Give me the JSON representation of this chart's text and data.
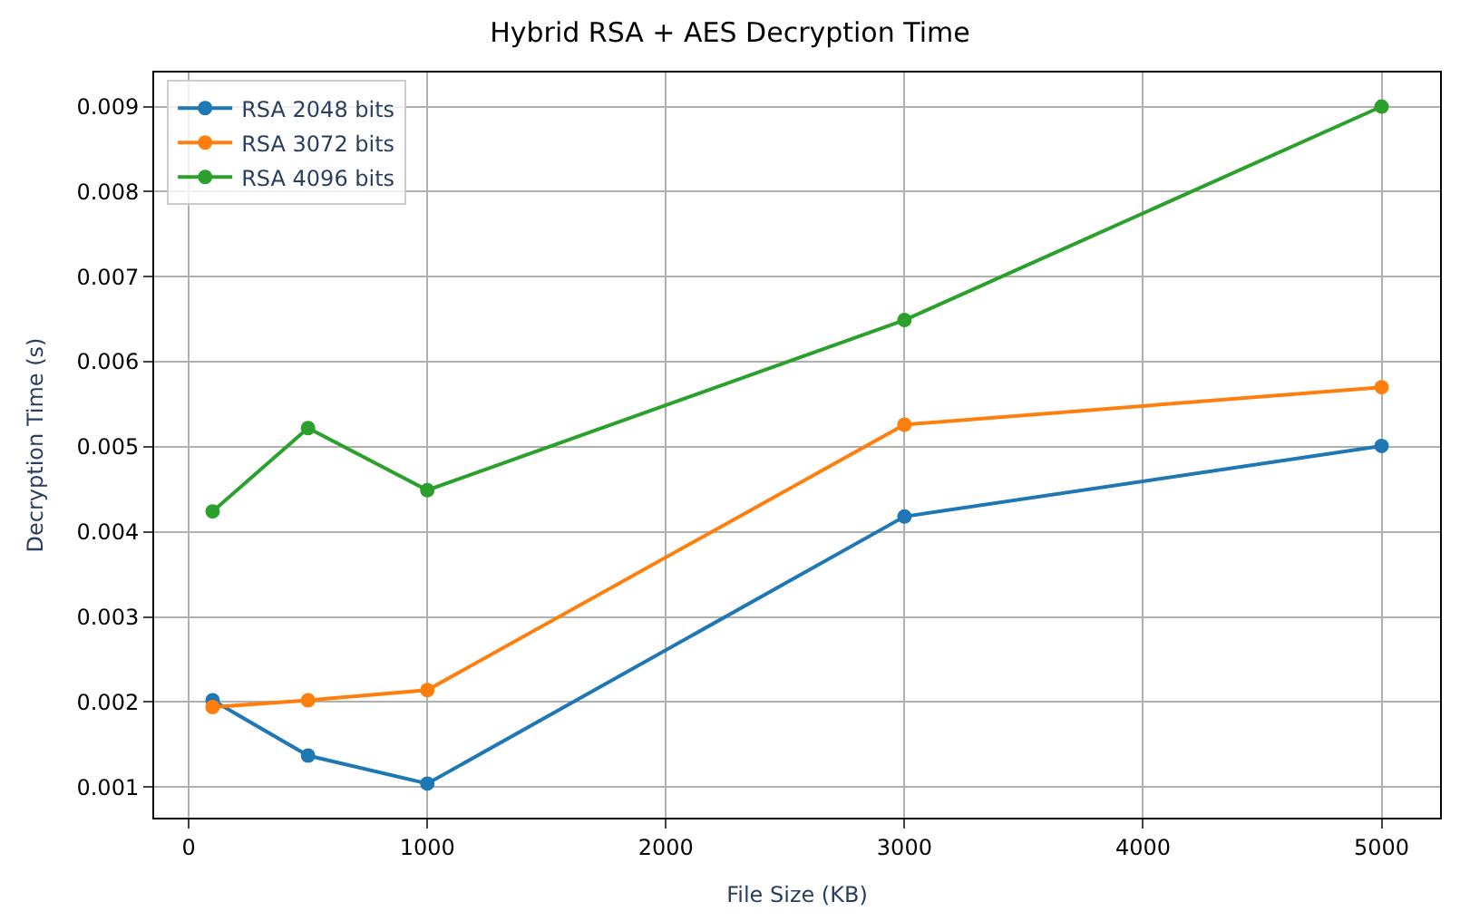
{
  "chart_data": {
    "type": "line",
    "title": "Hybrid RSA + AES Decryption Time",
    "xlabel": "File Size (KB)",
    "ylabel": "Decryption Time (s)",
    "x": [
      100,
      500,
      1000,
      3000,
      5000
    ],
    "series": [
      {
        "name": "RSA 2048 bits",
        "color": "#1f77b4",
        "values": [
          0.00202,
          0.00137,
          0.00104,
          0.00418,
          0.00501
        ]
      },
      {
        "name": "RSA 3072 bits",
        "color": "#ff7f0e",
        "values": [
          0.00194,
          0.00202,
          0.00214,
          0.00526,
          0.0057
        ]
      },
      {
        "name": "RSA 4096 bits",
        "color": "#2ca02c",
        "values": [
          0.00424,
          0.00522,
          0.00449,
          0.00649,
          0.009
        ]
      }
    ],
    "xlim": [
      -145,
      5245
    ],
    "xticks": [
      0,
      1000,
      2000,
      3000,
      4000,
      5000
    ],
    "ylim": [
      0.00064,
      0.0094
    ],
    "yticks": [
      0.001,
      0.002,
      0.003,
      0.004,
      0.005,
      0.006,
      0.007,
      0.008,
      0.009
    ],
    "grid": true,
    "legend": "top left",
    "marker": "circle",
    "line_style": "solid"
  }
}
